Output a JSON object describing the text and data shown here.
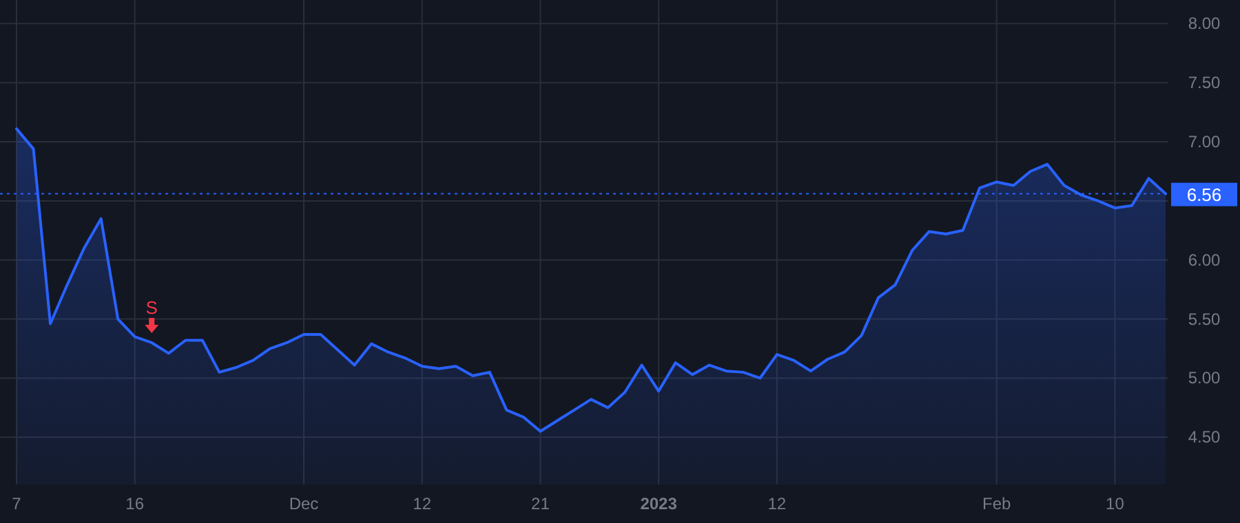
{
  "chart_data": {
    "type": "area",
    "categories": [
      "7",
      null,
      null,
      null,
      null,
      null,
      null,
      "16",
      null,
      null,
      null,
      null,
      null,
      null,
      null,
      null,
      null,
      "Dec",
      null,
      null,
      null,
      null,
      null,
      null,
      "12",
      null,
      null,
      null,
      null,
      null,
      null,
      "21",
      null,
      null,
      null,
      null,
      null,
      null,
      "2023",
      null,
      null,
      null,
      null,
      null,
      null,
      "12",
      null,
      null,
      null,
      null,
      null,
      null,
      null,
      null,
      null,
      null,
      null,
      null,
      "Feb",
      null,
      null,
      null,
      null,
      null,
      null,
      "10",
      null,
      null,
      null
    ],
    "series": [
      {
        "color": "#2962ff",
        "values": [
          7.11,
          6.94,
          5.46,
          5.79,
          6.1,
          6.35,
          5.5,
          5.35,
          5.3,
          5.21,
          5.32,
          5.32,
          5.05,
          5.09,
          5.15,
          5.25,
          5.3,
          5.37,
          5.37,
          5.24,
          5.11,
          5.29,
          5.22,
          5.17,
          5.1,
          5.08,
          5.1,
          5.02,
          5.05,
          4.73,
          4.67,
          4.55,
          4.64,
          4.73,
          4.82,
          4.75,
          4.88,
          5.11,
          4.89,
          5.13,
          5.03,
          5.11,
          5.06,
          5.05,
          5.0,
          5.2,
          5.15,
          5.06,
          5.16,
          5.22,
          5.36,
          5.68,
          5.79,
          6.08,
          6.24,
          6.22,
          6.25,
          6.61,
          6.66,
          6.63,
          6.75,
          6.81,
          6.63,
          6.55,
          6.5,
          6.44,
          6.46,
          6.69,
          6.56
        ]
      }
    ],
    "ylim": [
      4.1,
      8.2
    ],
    "yticks": [
      {
        "value": 4.5,
        "label": "4.50"
      },
      {
        "value": 5,
        "label": "5.00"
      },
      {
        "value": 5.5,
        "label": "5.50"
      },
      {
        "value": 6,
        "label": "6.00"
      },
      {
        "value": 6.5,
        "label": null
      },
      {
        "value": 7,
        "label": "7.00"
      },
      {
        "value": 7.5,
        "label": "7.50"
      },
      {
        "value": 8,
        "label": "8.00"
      }
    ],
    "grid": true,
    "ref_lines": [
      {
        "axis": "y",
        "value": 6.56,
        "label": "6.56",
        "color": "#2962ff",
        "line_style": "dotted"
      }
    ],
    "annotations": [
      {
        "text": "S",
        "y": 5.3
      }
    ]
  }
}
